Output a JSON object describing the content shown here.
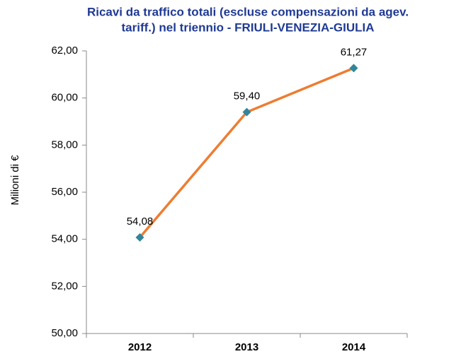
{
  "chart_data": {
    "type": "line",
    "title": [
      "Ricavi da traffico totali (escluse compensazioni da agev.",
      "tariff.) nel triennio - FRIULI-VENEZIA-GIULIA"
    ],
    "y_label": "Milioni di €",
    "categories": [
      "2012",
      "2013",
      "2014"
    ],
    "series": [
      {
        "name": "Ricavi",
        "color": "#ed7d31",
        "marker_color": "#31859c",
        "values": [
          54.08,
          59.4,
          61.27
        ],
        "value_labels": [
          "54,08",
          "59,40",
          "61,27"
        ]
      }
    ],
    "ylim": [
      50,
      62
    ],
    "yticks": [
      {
        "value": 50,
        "label": "50,00"
      },
      {
        "value": 52,
        "label": "52,00"
      },
      {
        "value": 54,
        "label": "54,00"
      },
      {
        "value": 56,
        "label": "56,00"
      },
      {
        "value": 58,
        "label": "58,00"
      },
      {
        "value": 60,
        "label": "60,00"
      },
      {
        "value": 62,
        "label": "62,00"
      }
    ]
  }
}
